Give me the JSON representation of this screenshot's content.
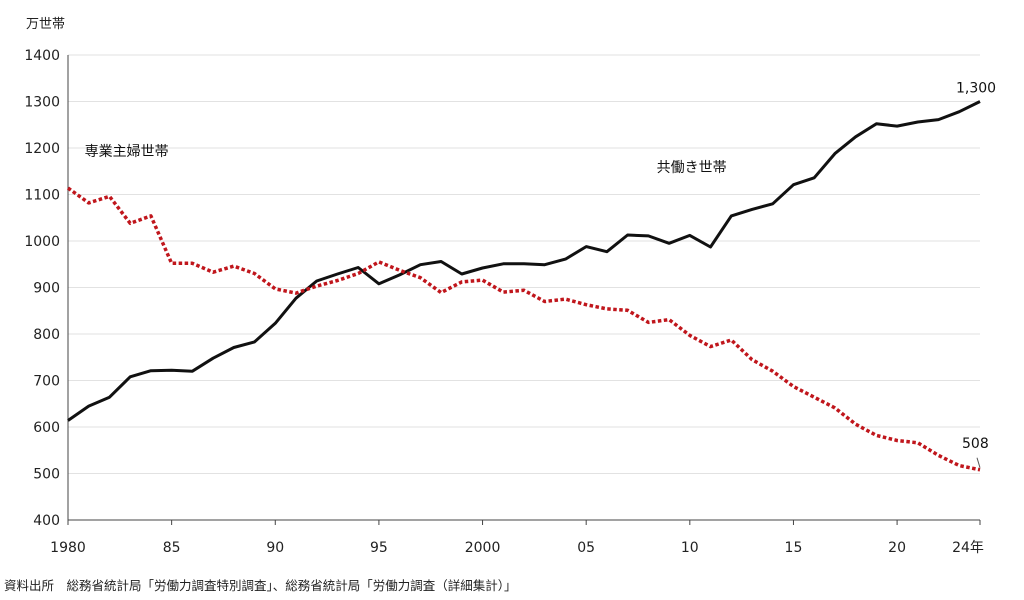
{
  "chart_data": {
    "type": "line",
    "ylabel": "万世帯",
    "ylim": [
      400,
      1400
    ],
    "yticks": [
      400,
      500,
      600,
      700,
      800,
      900,
      1000,
      1100,
      1200,
      1300,
      1400
    ],
    "xlim": [
      1980,
      2024
    ],
    "xticks": [
      {
        "value": 1980,
        "label": "1980"
      },
      {
        "value": 1985,
        "label": "85"
      },
      {
        "value": 1990,
        "label": "90"
      },
      {
        "value": 1995,
        "label": "95"
      },
      {
        "value": 2000,
        "label": "2000"
      },
      {
        "value": 2005,
        "label": "05"
      },
      {
        "value": 2010,
        "label": "10"
      },
      {
        "value": 2015,
        "label": "15"
      },
      {
        "value": 2020,
        "label": "20"
      },
      {
        "value": 2024,
        "label": "24年"
      }
    ],
    "grid": true,
    "x": [
      1980,
      1981,
      1982,
      1983,
      1984,
      1985,
      1986,
      1987,
      1988,
      1989,
      1990,
      1991,
      1992,
      1993,
      1994,
      1995,
      1996,
      1997,
      1998,
      1999,
      2000,
      2001,
      2002,
      2003,
      2004,
      2005,
      2006,
      2007,
      2008,
      2009,
      2010,
      2011,
      2012,
      2013,
      2014,
      2015,
      2016,
      2017,
      2018,
      2019,
      2020,
      2021,
      2022,
      2023,
      2024
    ],
    "series": [
      {
        "name": "共働き世帯",
        "color": "#111111",
        "style": "solid",
        "values": [
          614,
          645,
          664,
          708,
          721,
          722,
          720,
          748,
          771,
          783,
          823,
          877,
          914,
          929,
          943,
          908,
          927,
          949,
          956,
          929,
          942,
          951,
          951,
          949,
          961,
          988,
          977,
          1013,
          1011,
          995,
          1012,
          987,
          1054,
          1068,
          1080,
          1121,
          1136,
          1188,
          1224,
          1252,
          1247,
          1256,
          1261,
          1278,
          1300
        ]
      },
      {
        "name": "専業主婦世帯",
        "color": "#c0161c",
        "style": "dotted",
        "values": [
          1114,
          1082,
          1096,
          1038,
          1054,
          952,
          952,
          933,
          946,
          930,
          897,
          888,
          903,
          915,
          930,
          955,
          937,
          921,
          889,
          912,
          916,
          890,
          894,
          870,
          875,
          863,
          854,
          851,
          825,
          831,
          797,
          773,
          787,
          745,
          720,
          687,
          664,
          641,
          606,
          582,
          571,
          566,
          539,
          517,
          508
        ]
      }
    ],
    "annotations": [
      {
        "series": "共働き世帯",
        "label": "1,300"
      },
      {
        "series": "専業主婦世帯",
        "label": "508"
      }
    ]
  },
  "source": "資料出所　総務省統計局「労働力調査特別調査」、総務省統計局「労働力調査（詳細集計）」"
}
